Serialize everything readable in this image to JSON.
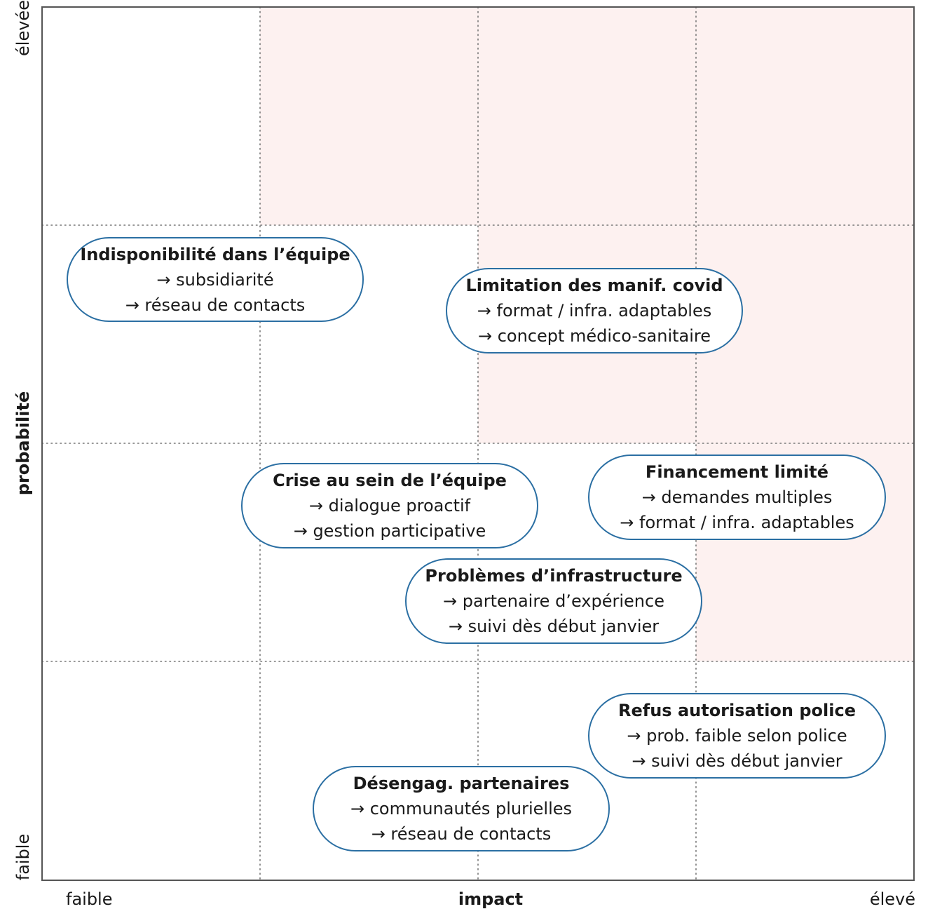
{
  "axes": {
    "x_label": "impact",
    "x_low": "faible",
    "x_high": "élevé",
    "y_label": "probabilité",
    "y_low": "faible",
    "y_high": "élevée"
  },
  "colors": {
    "highlight": "#fdf1f0",
    "border": "#2b6fa3",
    "grid": "#777777",
    "frame": "#555555"
  },
  "risks": [
    {
      "title": "Indisponibilité dans l’équipe",
      "lines": [
        "→ subsidiarité",
        "→ réseau de contacts"
      ]
    },
    {
      "title": "Limitation des manif. covid",
      "lines": [
        "→ format / infra. adaptables",
        "→ concept médico-sanitaire"
      ]
    },
    {
      "title": "Crise au sein de l’équipe",
      "lines": [
        "→ dialogue proactif",
        "→ gestion participative"
      ]
    },
    {
      "title": "Financement limité",
      "lines": [
        "→ demandes multiples",
        "→ format / infra. adaptables"
      ]
    },
    {
      "title": "Problèmes d’infrastructure",
      "lines": [
        "→ partenaire d’expérience",
        "→ suivi dès début janvier"
      ]
    },
    {
      "title": "Refus autorisation police",
      "lines": [
        "→ prob. faible selon police",
        "→ suivi dès début janvier"
      ]
    },
    {
      "title": "Désengag. partenaires",
      "lines": [
        "→ communautés plurielles",
        "→ réseau de contacts"
      ]
    }
  ]
}
